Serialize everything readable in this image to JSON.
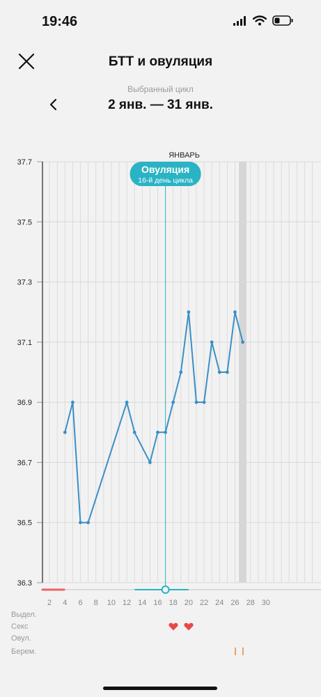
{
  "status": {
    "time": "19:46"
  },
  "header": {
    "title": "БТТ и овуляция"
  },
  "cycle": {
    "label": "Выбранный цикл",
    "range": "2 янв. — 31 янв."
  },
  "chart_data": {
    "type": "line",
    "month_label": "ЯНВАРЬ",
    "x_ticks": [
      2,
      4,
      6,
      8,
      10,
      12,
      14,
      16,
      18,
      20,
      22,
      24,
      26,
      28,
      30
    ],
    "y_ticks": [
      "37.7",
      "37.5",
      "37.3",
      "37.1",
      "36.9",
      "36.7",
      "36.5",
      "36.3"
    ],
    "ylim": [
      36.3,
      37.7
    ],
    "series": [
      {
        "x": [
          4,
          5,
          6,
          7,
          12,
          13,
          15,
          16,
          17,
          18,
          19,
          20,
          21,
          22,
          23,
          24,
          25,
          26,
          27
        ],
        "values": [
          36.8,
          36.9,
          36.5,
          36.5,
          36.9,
          36.8,
          36.7,
          36.8,
          36.8,
          36.9,
          37.0,
          37.2,
          36.9,
          36.9,
          37.1,
          37.0,
          37.0,
          37.2,
          37.1
        ]
      }
    ],
    "ovulation": {
      "day": 17,
      "title": "Овуляция",
      "subtitle": "16-й день цикла"
    },
    "highlight_day": 27,
    "period_days": [
      1,
      4
    ],
    "fertile_days": [
      13,
      20
    ],
    "grid": true
  },
  "legend": {
    "rows": [
      {
        "label": "Выдел."
      },
      {
        "label": "Секс"
      },
      {
        "label": "Овул."
      },
      {
        "label": "Берем."
      }
    ],
    "sex_days": [
      18,
      20
    ],
    "pregnancy_days": [
      26,
      27
    ]
  },
  "colors": {
    "line": "#3a8fc7",
    "ovulation": "#2ab3c4",
    "period": "#f06060",
    "heart": "#e84848",
    "pregnancy": "#f0a060"
  }
}
